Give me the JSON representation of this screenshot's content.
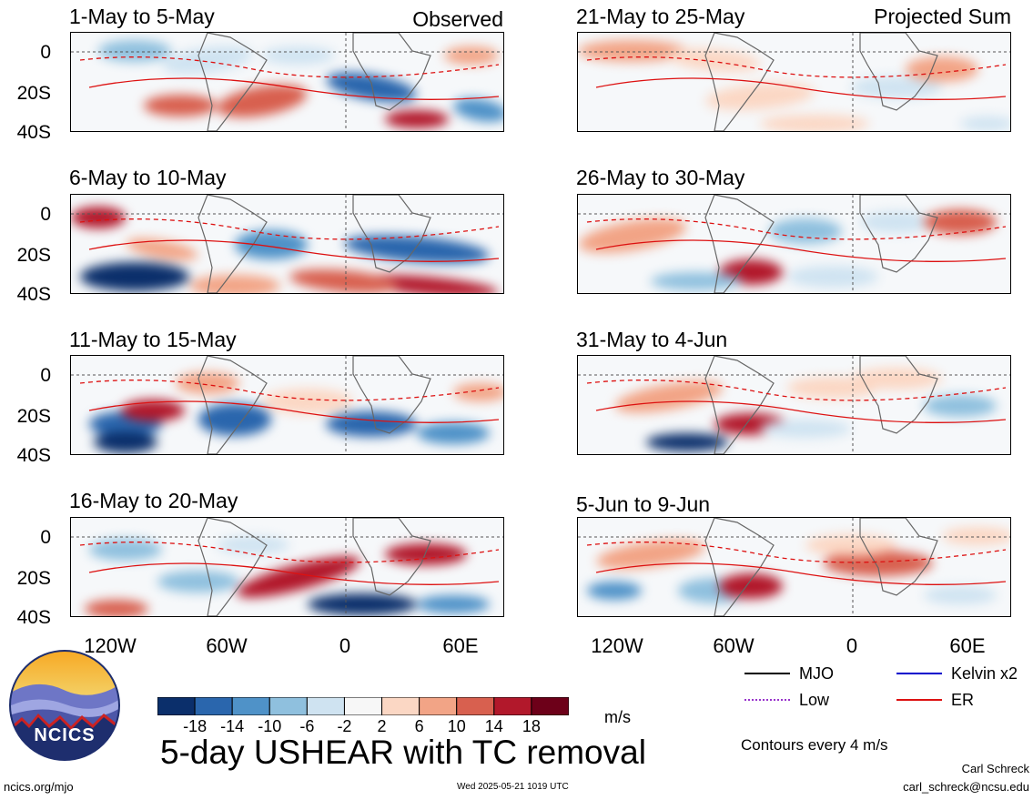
{
  "panels": [
    {
      "id": "p1",
      "title": "1-May to 5-May",
      "label_right": "Observed"
    },
    {
      "id": "p2",
      "title": "21-May to 25-May",
      "label_right": "Projected Sum"
    },
    {
      "id": "p3",
      "title": "6-May to 10-May",
      "label_right": ""
    },
    {
      "id": "p4",
      "title": "26-May to 30-May",
      "label_right": ""
    },
    {
      "id": "p5",
      "title": "11-May to 15-May",
      "label_right": ""
    },
    {
      "id": "p6",
      "title": "31-May to 4-Jun",
      "label_right": ""
    },
    {
      "id": "p7",
      "title": "16-May to 20-May",
      "label_right": ""
    },
    {
      "id": "p8",
      "title": "5-Jun to 9-Jun",
      "label_right": ""
    }
  ],
  "y_ticks": [
    "0",
    "20S",
    "40S"
  ],
  "x_ticks": [
    "120W",
    "60W",
    "0",
    "60E"
  ],
  "main_title": "5-day USHEAR with TC removal",
  "colorbar": {
    "ticks": [
      "-18",
      "-14",
      "-10",
      "-6",
      "-2",
      "2",
      "6",
      "10",
      "14",
      "18"
    ],
    "unit": "m/s",
    "colors": [
      "#0b2f6b",
      "#2a66ad",
      "#4f92c8",
      "#8fc0de",
      "#cfe3f1",
      "#f7f7f7",
      "#fbd7c4",
      "#f2a486",
      "#d8604f",
      "#b2182b",
      "#6d0019"
    ]
  },
  "legend": {
    "items": [
      {
        "label": "MJO",
        "color": "#000000",
        "style": "solid"
      },
      {
        "label": "Kelvin x2",
        "color": "#0000cc",
        "style": "solid"
      },
      {
        "label": "Low",
        "color": "#9933cc",
        "style": "dotted"
      },
      {
        "label": "ER",
        "color": "#dd1111",
        "style": "solid"
      }
    ],
    "contour_note": "Contours every 4 m/s"
  },
  "footer": {
    "left": "ncics.org/mjo",
    "center": "Wed 2025-05-21 1019 UTC",
    "author": "Carl Schreck",
    "email": "carl_schreck@ncsu.edu"
  },
  "logo": {
    "text": "NCICS"
  },
  "chart_data": {
    "type": "heatmap",
    "title": "5-day USHEAR with TC removal",
    "unit": "m/s",
    "x_axis": {
      "ticks": [
        "120W",
        "60W",
        "0",
        "60E"
      ],
      "range": [
        "145W",
        "80E"
      ]
    },
    "y_axis": {
      "ticks": [
        "0",
        "20S",
        "40S"
      ],
      "range": [
        "10N",
        "40S"
      ]
    },
    "color_levels": [
      -18,
      -14,
      -10,
      -6,
      -2,
      2,
      6,
      10,
      14,
      18
    ],
    "contour_interval": 4,
    "contour_legend": [
      "MJO",
      "Kelvin x2",
      "Low",
      "ER"
    ],
    "grid": "dashed lines at 0 latitude and 0 longitude",
    "panels": [
      "1-May to 5-May",
      "6-May to 10-May",
      "11-May to 15-May",
      "16-May to 20-May",
      "21-May to 25-May",
      "26-May to 30-May",
      "31-May to 4-Jun",
      "5-Jun to 9-Jun"
    ],
    "panel_groups": {
      "Observed": [
        "1-May to 5-May",
        "6-May to 10-May",
        "11-May to 15-May",
        "16-May to 20-May"
      ],
      "Projected Sum": [
        "21-May to 25-May",
        "26-May to 30-May",
        "31-May to 4-Jun",
        "5-Jun to 9-Jun"
      ]
    }
  }
}
